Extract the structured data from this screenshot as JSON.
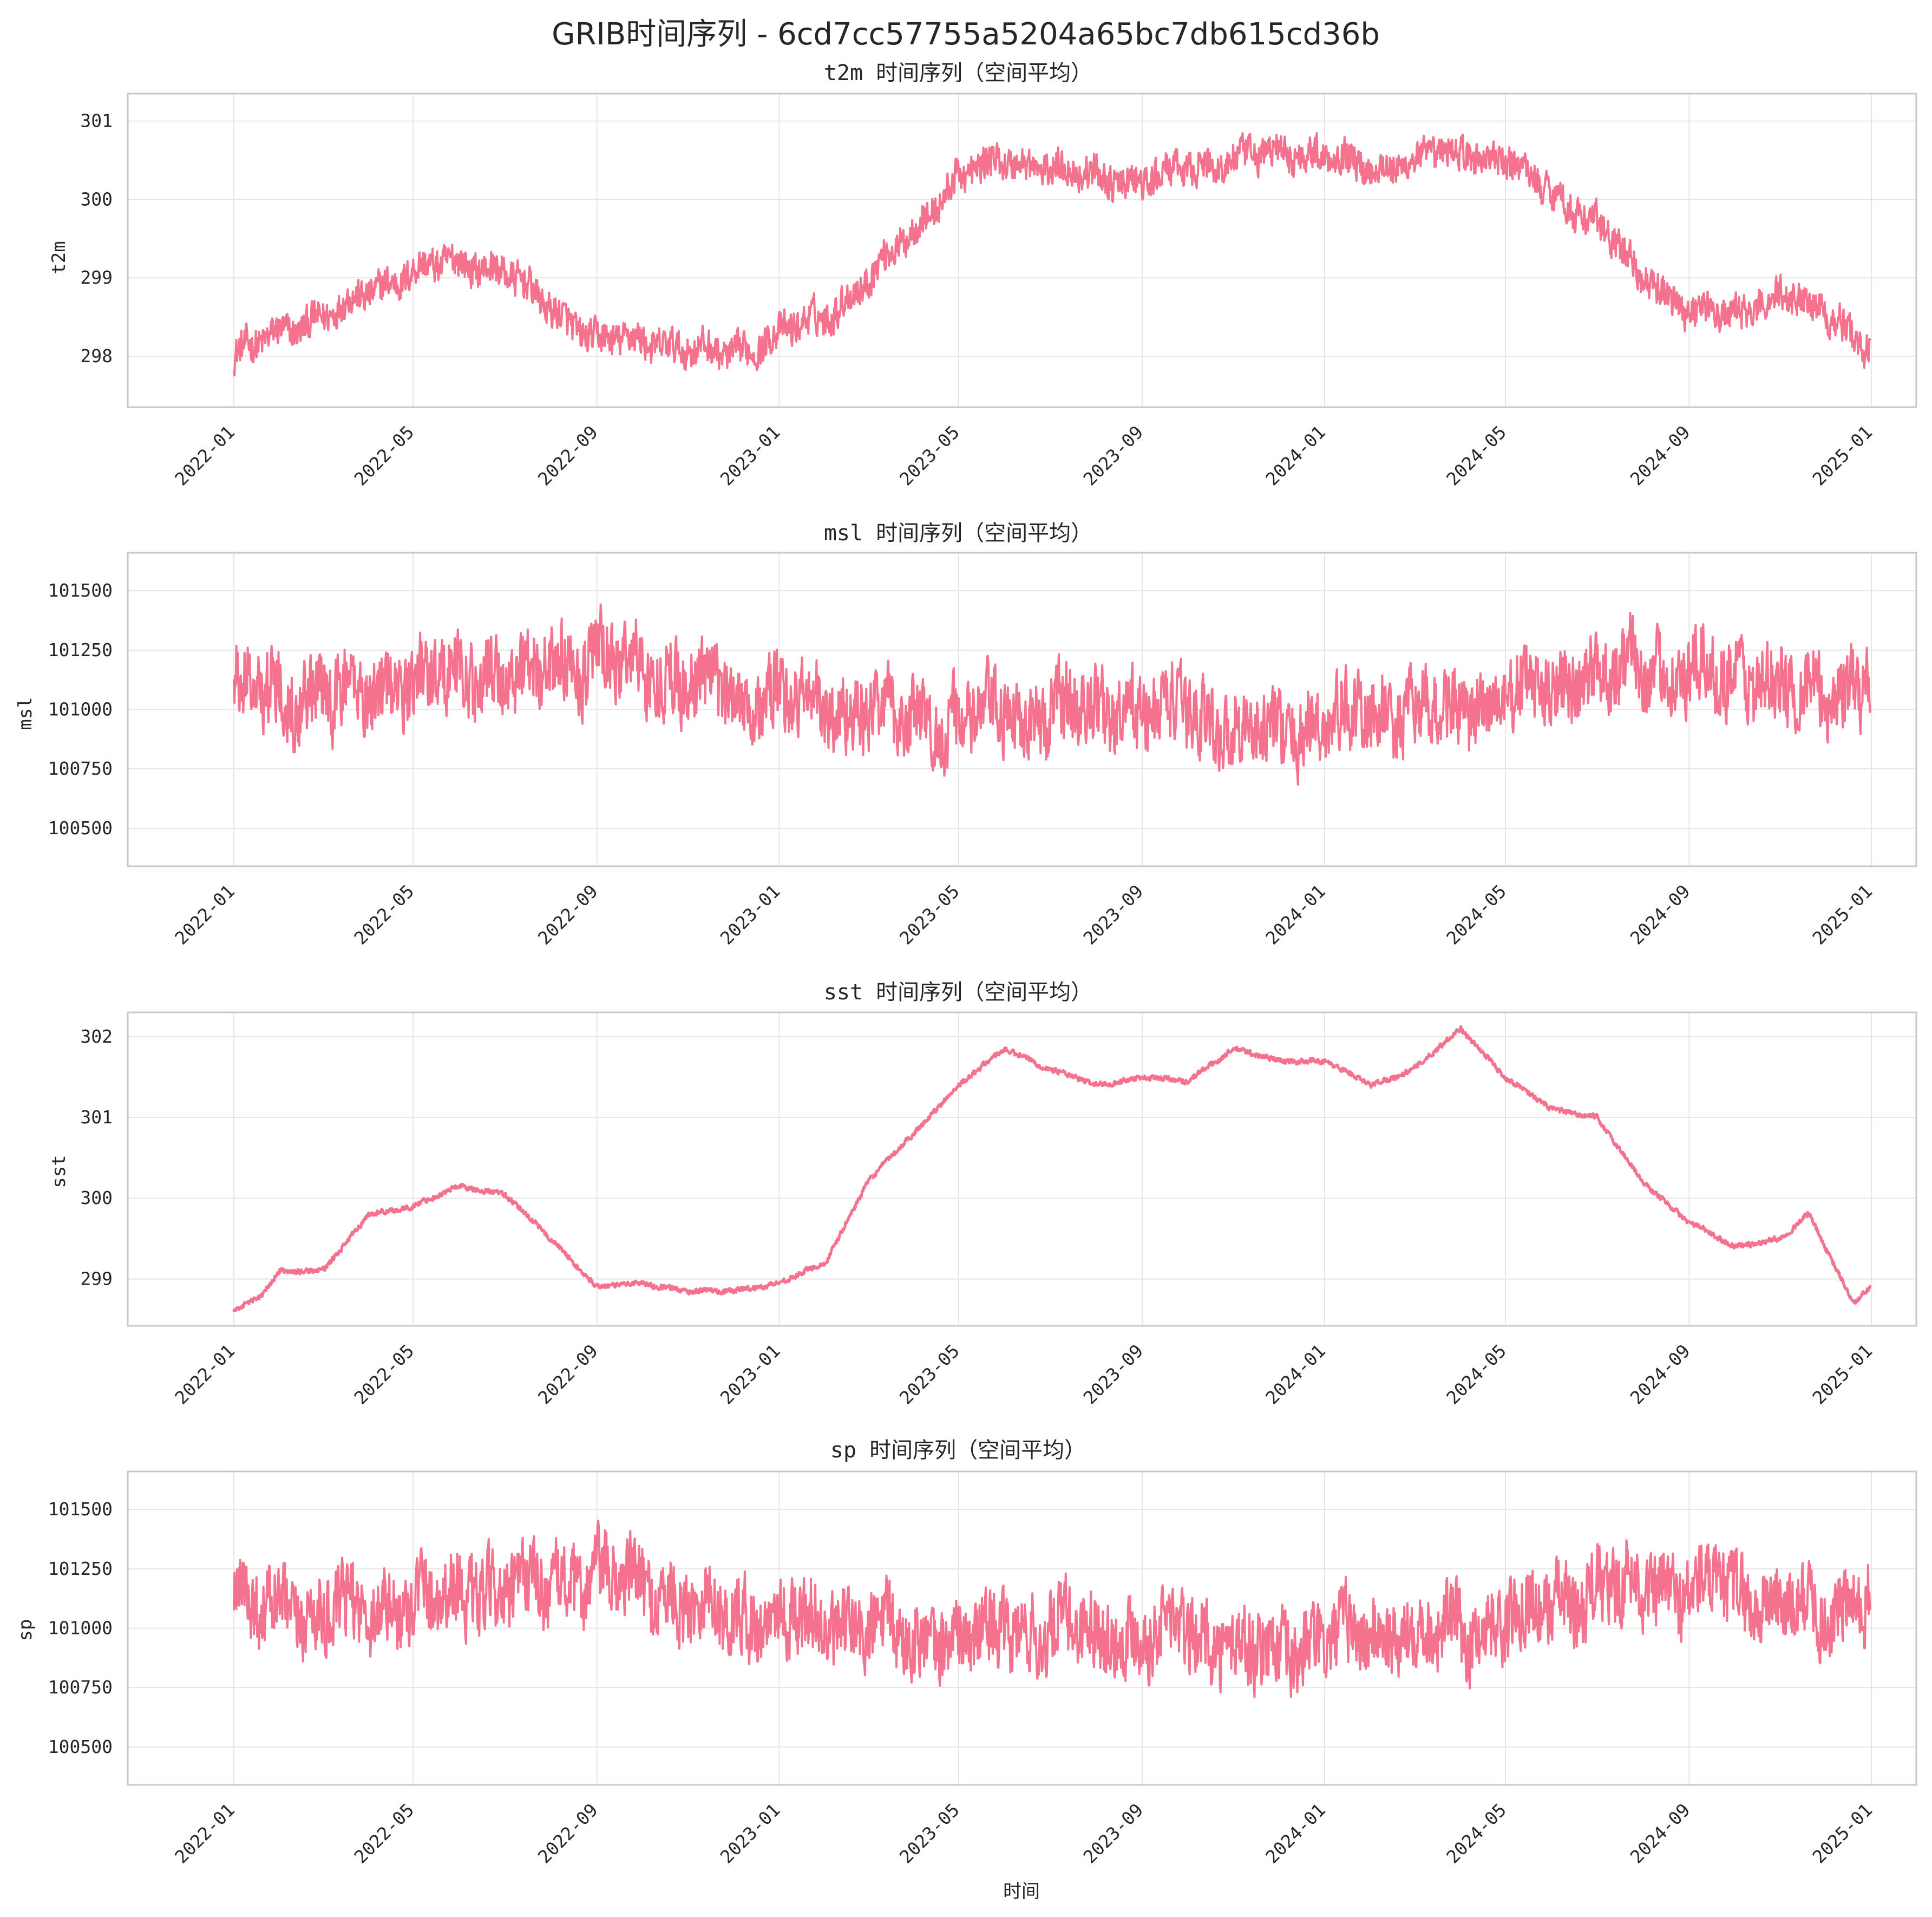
{
  "figure": {
    "title": "GRIB时间序列 - 6cd7cc57755a5204a65bc7db615cd36b",
    "xlabel": "时间",
    "line_color": "#f4728d"
  },
  "chart_data": [
    {
      "type": "line",
      "title": "t2m 时间序列（空间平均）",
      "ylabel": "t2m",
      "xlim": [
        "2021-10-22",
        "2025-01-31"
      ],
      "ylim": [
        297.35,
        301.35
      ],
      "x_ticks": [
        "2022-01",
        "2022-05",
        "2022-09",
        "2023-01",
        "2023-05",
        "2023-09",
        "2024-01",
        "2024-05",
        "2024-09",
        "2025-01"
      ],
      "y_ticks": [
        298,
        299,
        300,
        301
      ],
      "x_range": [
        "2022-01-01",
        "2024-12-31"
      ],
      "series": [
        {
          "noise": 0.42,
          "x": [
            "2022-01-01",
            "2022-02-01",
            "2022-03-01",
            "2022-04-01",
            "2022-05-01",
            "2022-06-01",
            "2022-07-01",
            "2022-08-01",
            "2022-09-01",
            "2022-10-01",
            "2022-11-01",
            "2022-12-01",
            "2023-01-01",
            "2023-02-01",
            "2023-03-01",
            "2023-04-01",
            "2023-05-01",
            "2023-06-01",
            "2023-07-01",
            "2023-08-01",
            "2023-09-01",
            "2023-10-01",
            "2023-11-01",
            "2023-12-01",
            "2024-01-01",
            "2024-02-01",
            "2024-03-01",
            "2024-04-01",
            "2024-05-01",
            "2024-06-01",
            "2024-07-01",
            "2024-08-01",
            "2024-09-01",
            "2024-10-01",
            "2024-11-01",
            "2024-12-01",
            "2024-12-31"
          ],
          "y": [
            298.0,
            298.3,
            298.5,
            298.8,
            299.1,
            299.2,
            299.1,
            298.6,
            298.2,
            298.2,
            298.1,
            298.0,
            298.3,
            298.5,
            299.0,
            299.6,
            300.3,
            300.5,
            300.4,
            300.3,
            300.2,
            300.4,
            300.5,
            300.6,
            300.6,
            300.4,
            300.5,
            300.6,
            300.5,
            300.1,
            299.7,
            299.0,
            298.6,
            298.5,
            298.8,
            298.6,
            298.1
          ]
        }
      ]
    },
    {
      "type": "line",
      "title": "msl 时间序列（空间平均）",
      "ylabel": "msl",
      "xlim": [
        "2021-10-22",
        "2025-01-31"
      ],
      "ylim": [
        100340,
        101660
      ],
      "x_ticks": [
        "2022-01",
        "2022-05",
        "2022-09",
        "2023-01",
        "2023-05",
        "2023-09",
        "2024-01",
        "2024-05",
        "2024-09",
        "2025-01"
      ],
      "y_ticks": [
        100500,
        100750,
        101000,
        101250,
        101500
      ],
      "x_range": [
        "2022-01-01",
        "2024-12-31"
      ],
      "series": [
        {
          "noise": 310,
          "x": [
            "2022-01-01",
            "2022-02-01",
            "2022-03-01",
            "2022-04-01",
            "2022-05-01",
            "2022-06-01",
            "2022-07-01",
            "2022-08-01",
            "2022-09-01",
            "2022-10-01",
            "2022-11-01",
            "2022-12-01",
            "2023-01-01",
            "2023-02-01",
            "2023-03-01",
            "2023-04-01",
            "2023-05-01",
            "2023-06-01",
            "2023-07-01",
            "2023-08-01",
            "2023-09-01",
            "2023-10-01",
            "2023-11-01",
            "2023-12-01",
            "2024-01-01",
            "2024-02-01",
            "2024-03-01",
            "2024-04-01",
            "2024-05-01",
            "2024-06-01",
            "2024-07-01",
            "2024-08-01",
            "2024-09-01",
            "2024-10-01",
            "2024-11-01",
            "2024-12-01",
            "2024-12-31"
          ],
          "y": [
            101100,
            101080,
            101060,
            101080,
            101120,
            101150,
            101150,
            101180,
            101220,
            101180,
            101120,
            101050,
            101060,
            101000,
            101000,
            100950,
            100950,
            100980,
            100990,
            101000,
            100980,
            101000,
            100920,
            100900,
            100950,
            100970,
            101000,
            100980,
            101050,
            101100,
            101150,
            101180,
            101150,
            101150,
            101100,
            101050,
            101150
          ]
        }
      ]
    },
    {
      "type": "line",
      "title": "sst 时间序列（空间平均）",
      "ylabel": "sst",
      "xlim": [
        "2021-10-22",
        "2025-01-31"
      ],
      "ylim": [
        298.42,
        302.3
      ],
      "x_ticks": [
        "2022-01",
        "2022-05",
        "2022-09",
        "2023-01",
        "2023-05",
        "2023-09",
        "2024-01",
        "2024-05",
        "2024-09",
        "2025-01"
      ],
      "y_ticks": [
        299,
        300,
        301,
        302
      ],
      "x_range": [
        "2022-01-01",
        "2024-12-31"
      ],
      "series": [
        {
          "noise": 0.06,
          "x": [
            "2022-01-01",
            "2022-01-20",
            "2022-02-01",
            "2022-03-01",
            "2022-03-20",
            "2022-04-01",
            "2022-05-01",
            "2022-06-01",
            "2022-07-01",
            "2022-08-01",
            "2022-09-01",
            "2022-10-01",
            "2022-11-01",
            "2022-12-01",
            "2023-01-01",
            "2023-02-01",
            "2023-03-01",
            "2023-04-01",
            "2023-05-01",
            "2023-06-01",
            "2023-07-01",
            "2023-08-01",
            "2023-09-01",
            "2023-10-01",
            "2023-11-01",
            "2023-12-01",
            "2024-01-01",
            "2024-02-01",
            "2024-03-01",
            "2024-04-01",
            "2024-05-01",
            "2024-06-01",
            "2024-07-01",
            "2024-08-01",
            "2024-09-01",
            "2024-10-01",
            "2024-11-01",
            "2024-11-20",
            "2024-12-20",
            "2024-12-31"
          ],
          "y": [
            298.6,
            298.8,
            299.1,
            299.1,
            299.5,
            299.8,
            299.9,
            300.15,
            300.05,
            299.5,
            298.9,
            298.95,
            298.85,
            298.85,
            298.95,
            299.2,
            300.2,
            300.8,
            301.4,
            301.85,
            301.6,
            301.4,
            301.5,
            301.45,
            301.85,
            301.7,
            301.7,
            301.4,
            301.6,
            302.1,
            301.5,
            301.1,
            301.0,
            300.2,
            299.7,
            299.4,
            299.5,
            299.8,
            298.7,
            298.9
          ]
        }
      ]
    },
    {
      "type": "line",
      "title": "sp 时间序列（空间平均）",
      "ylabel": "sp",
      "xlabel": "时间",
      "xlim": [
        "2021-10-22",
        "2025-01-31"
      ],
      "ylim": [
        100340,
        101660
      ],
      "x_ticks": [
        "2022-01",
        "2022-05",
        "2022-09",
        "2023-01",
        "2023-05",
        "2023-09",
        "2024-01",
        "2024-05",
        "2024-09",
        "2025-01"
      ],
      "y_ticks": [
        100500,
        100750,
        101000,
        101250,
        101500
      ],
      "x_range": [
        "2022-01-01",
        "2024-12-31"
      ],
      "series": [
        {
          "noise": 310,
          "x": [
            "2022-01-01",
            "2022-02-01",
            "2022-03-01",
            "2022-04-01",
            "2022-05-01",
            "2022-06-01",
            "2022-07-01",
            "2022-08-01",
            "2022-09-01",
            "2022-10-01",
            "2022-11-01",
            "2022-12-01",
            "2023-01-01",
            "2023-02-01",
            "2023-03-01",
            "2023-04-01",
            "2023-05-01",
            "2023-06-01",
            "2023-07-01",
            "2023-08-01",
            "2023-09-01",
            "2023-10-01",
            "2023-11-01",
            "2023-12-01",
            "2024-01-01",
            "2024-02-01",
            "2024-03-01",
            "2024-04-01",
            "2024-05-01",
            "2024-06-01",
            "2024-07-01",
            "2024-08-01",
            "2024-09-01",
            "2024-10-01",
            "2024-11-01",
            "2024-12-01",
            "2024-12-31"
          ],
          "y": [
            101100,
            101080,
            101060,
            101080,
            101120,
            101150,
            101150,
            101180,
            101220,
            101180,
            101120,
            101050,
            101060,
            101000,
            101000,
            100950,
            100950,
            100980,
            100990,
            101000,
            100980,
            101000,
            100920,
            100900,
            100950,
            100970,
            101000,
            100980,
            101050,
            101100,
            101150,
            101180,
            101150,
            101150,
            101100,
            101050,
            101150
          ]
        }
      ]
    }
  ]
}
